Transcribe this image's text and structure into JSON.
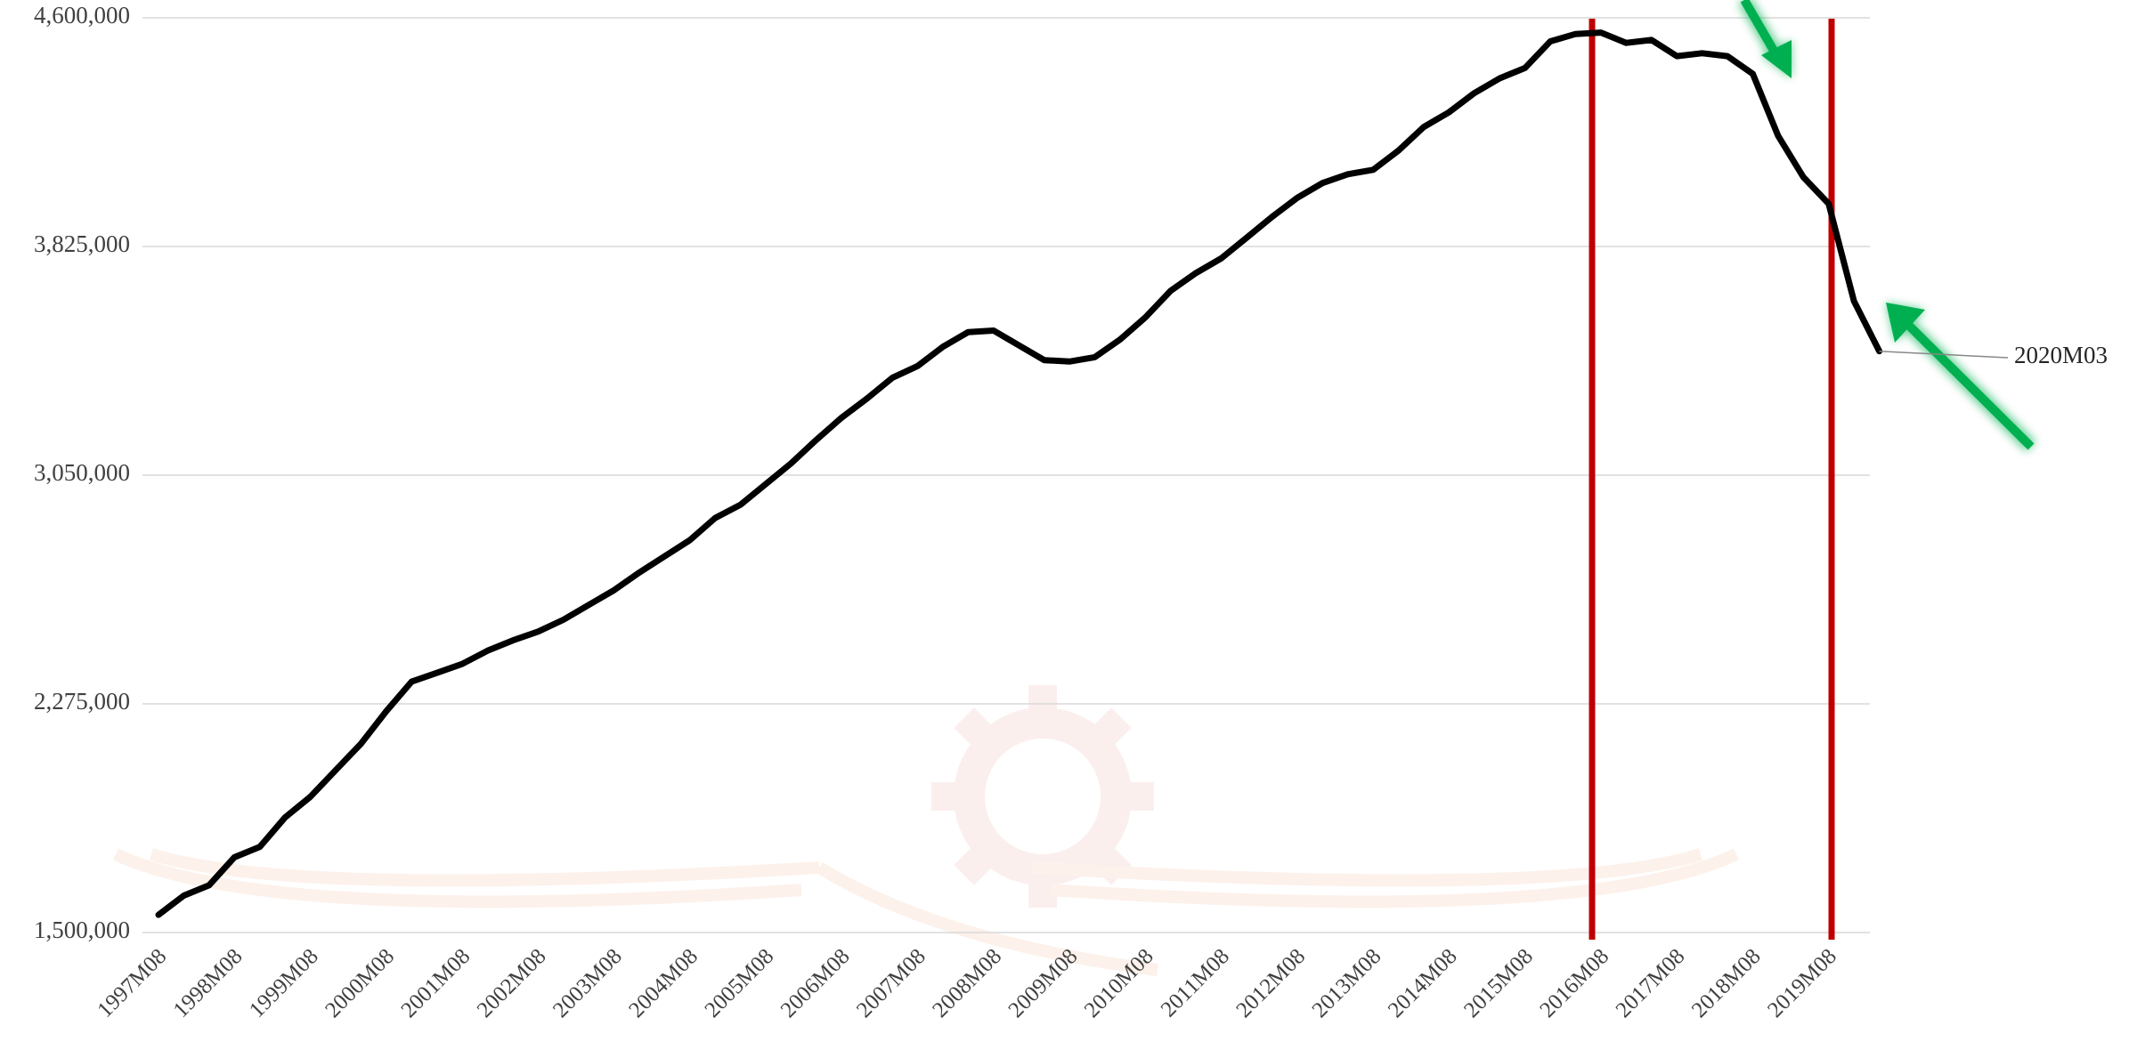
{
  "chart_data": {
    "type": "line",
    "categories": [
      "1997M08",
      null,
      null,
      "1998M08",
      null,
      null,
      "1999M08",
      null,
      null,
      "2000M08",
      null,
      null,
      "2001M08",
      null,
      null,
      "2002M08",
      null,
      null,
      "2003M08",
      null,
      null,
      "2004M08",
      null,
      null,
      "2005M08",
      null,
      null,
      "2006M08",
      null,
      null,
      "2007M08",
      null,
      null,
      "2008M08",
      null,
      null,
      "2009M08",
      null,
      null,
      "2010M08",
      null,
      null,
      "2011M08",
      null,
      null,
      "2012M08",
      null,
      null,
      "2013M08",
      null,
      null,
      "2014M08",
      null,
      null,
      "2015M08",
      null,
      null,
      "2016M08",
      null,
      null,
      "2017M08",
      null,
      null,
      "2018M08",
      null,
      null,
      "2019M08",
      null,
      null
    ],
    "values": [
      1560000,
      1625000,
      1660000,
      1755000,
      1790000,
      1890000,
      1960000,
      2050000,
      2140000,
      2250000,
      2350000,
      2380000,
      2410000,
      2455000,
      2490000,
      2520000,
      2560000,
      2610000,
      2660000,
      2720000,
      2775000,
      2830000,
      2905000,
      2950000,
      3020000,
      3090000,
      3170000,
      3245000,
      3310000,
      3380000,
      3420000,
      3485000,
      3535000,
      3540000,
      3490000,
      3440000,
      3435000,
      3450000,
      3510000,
      3585000,
      3675000,
      3735000,
      3785000,
      3855000,
      3925000,
      3990000,
      4040000,
      4070000,
      4085000,
      4150000,
      4230000,
      4280000,
      4345000,
      4395000,
      4430000,
      4520000,
      4545000,
      4550000,
      4515000,
      4525000,
      4470000,
      4480000,
      4470000,
      4410000,
      4200000,
      4060000,
      3970000,
      3640000,
      3470000
    ],
    "color": "#000000",
    "ylim": [
      1500000,
      4600000
    ],
    "yticks": [
      {
        "value": 1500000,
        "label": "1,500,000"
      },
      {
        "value": 2275000,
        "label": "2,275,000"
      },
      {
        "value": 3050000,
        "label": "3,050,000"
      },
      {
        "value": 3825000,
        "label": "3,825,000"
      },
      {
        "value": 4600000,
        "label": "4,600,000"
      }
    ],
    "grid": true,
    "annotation": "2020M03"
  }
}
